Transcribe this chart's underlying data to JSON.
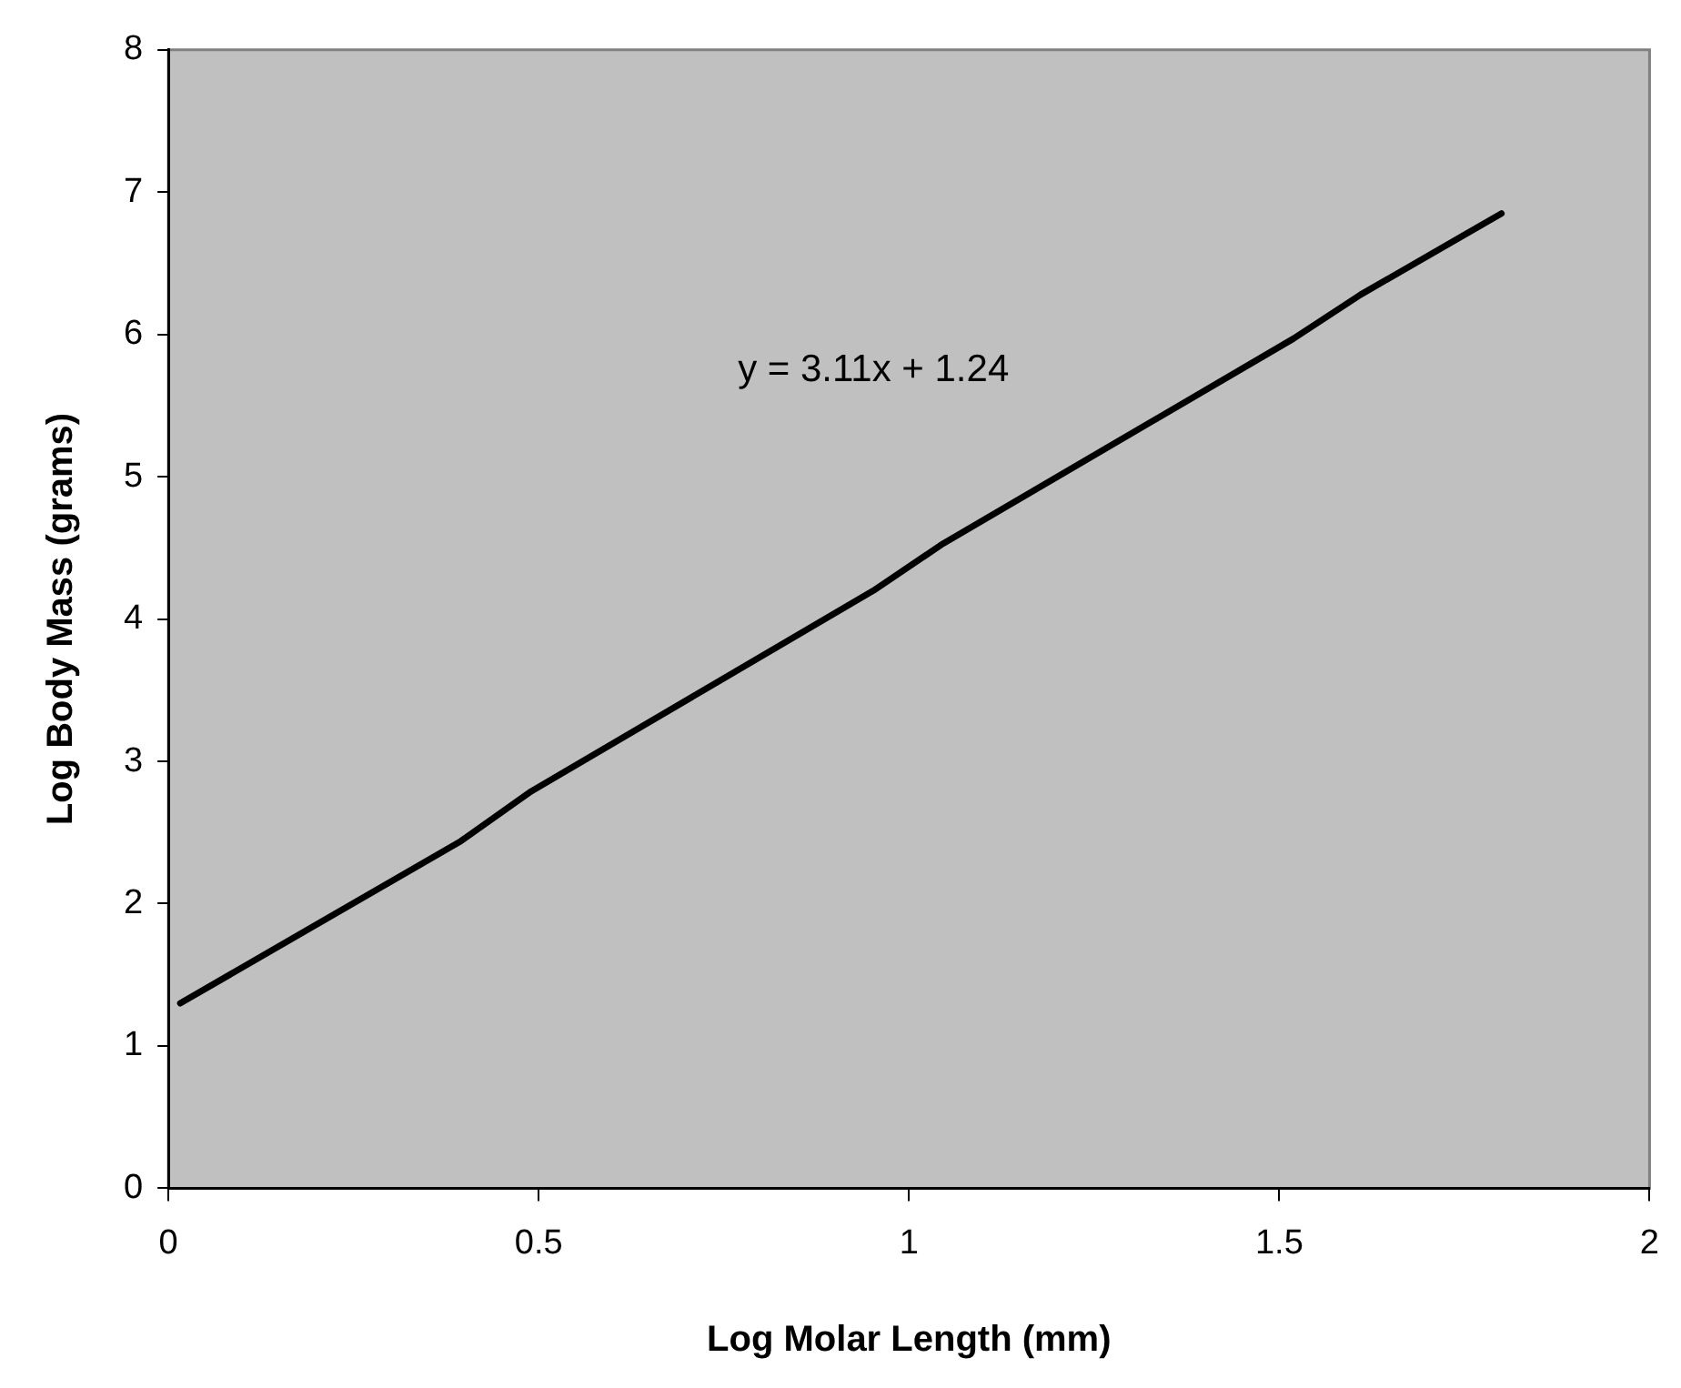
{
  "chart_data": {
    "type": "line",
    "xlabel": "Log Molar Length (mm)",
    "ylabel": "Log Body Mass (grams)",
    "annotations": [
      "y = 3.11x + 1.24"
    ],
    "series": [
      {
        "color": "#000000",
        "x": [
          0.016,
          0.395,
          0.49,
          0.952,
          1.046,
          1.519,
          1.61,
          1.8
        ],
        "values": [
          1.3,
          2.44,
          2.79,
          4.2,
          4.53,
          5.97,
          6.28,
          6.85
        ]
      }
    ],
    "xlim": [
      0,
      2
    ],
    "xticks": [
      0,
      0.5,
      1,
      1.5,
      2
    ],
    "ylim": [
      0,
      8
    ],
    "yticks": [
      0,
      1,
      2,
      3,
      4,
      5,
      6,
      7,
      8
    ],
    "grid": false,
    "legend": false,
    "marker": "none",
    "line_style": "solid"
  }
}
